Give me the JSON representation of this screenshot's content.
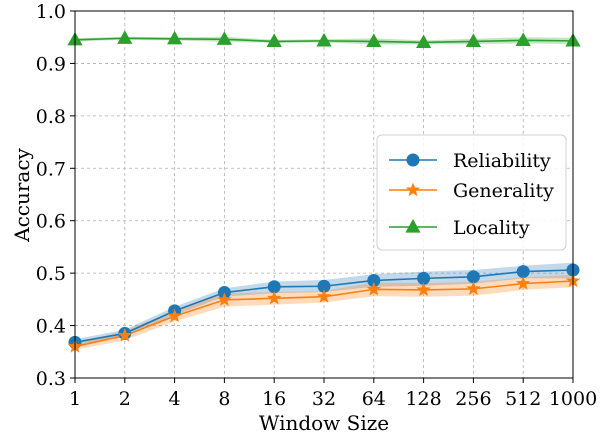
{
  "chart_data": {
    "type": "line",
    "title": "",
    "xlabel": "Window Size",
    "ylabel": "Accuracy",
    "categories": [
      "1",
      "2",
      "4",
      "8",
      "16",
      "32",
      "64",
      "128",
      "256",
      "512",
      "1000"
    ],
    "ylim": [
      0.3,
      1.0
    ],
    "yticks": [
      "0.3",
      "0.4",
      "0.5",
      "0.6",
      "0.7",
      "0.8",
      "0.9",
      "1.0"
    ],
    "grid": true,
    "legend_position": "right",
    "series": [
      {
        "name": "Reliability",
        "color": "#1f77b4",
        "marker": "circle",
        "values": [
          0.368,
          0.385,
          0.428,
          0.463,
          0.474,
          0.475,
          0.486,
          0.49,
          0.493,
          0.503,
          0.506
        ],
        "band_lower": [
          0.362,
          0.378,
          0.42,
          0.455,
          0.462,
          0.464,
          0.474,
          0.476,
          0.48,
          0.49,
          0.49
        ],
        "band_upper": [
          0.374,
          0.392,
          0.436,
          0.471,
          0.484,
          0.487,
          0.498,
          0.503,
          0.506,
          0.514,
          0.52
        ]
      },
      {
        "name": "Generality",
        "color": "#ff7f0e",
        "marker": "star",
        "values": [
          0.36,
          0.381,
          0.418,
          0.449,
          0.452,
          0.455,
          0.469,
          0.468,
          0.47,
          0.48,
          0.485
        ],
        "band_lower": [
          0.354,
          0.372,
          0.408,
          0.436,
          0.44,
          0.444,
          0.456,
          0.455,
          0.457,
          0.468,
          0.473
        ],
        "band_upper": [
          0.366,
          0.39,
          0.428,
          0.461,
          0.464,
          0.466,
          0.482,
          0.481,
          0.483,
          0.492,
          0.497
        ]
      },
      {
        "name": "Locality",
        "color": "#2ca02c",
        "marker": "triangle",
        "values": [
          0.945,
          0.948,
          0.947,
          0.946,
          0.942,
          0.943,
          0.942,
          0.94,
          0.942,
          0.944,
          0.943
        ],
        "band_lower": [
          0.942,
          0.945,
          0.944,
          0.941,
          0.939,
          0.94,
          0.936,
          0.936,
          0.937,
          0.938,
          0.937
        ],
        "band_upper": [
          0.948,
          0.951,
          0.95,
          0.951,
          0.945,
          0.946,
          0.948,
          0.944,
          0.947,
          0.95,
          0.949
        ]
      }
    ]
  }
}
